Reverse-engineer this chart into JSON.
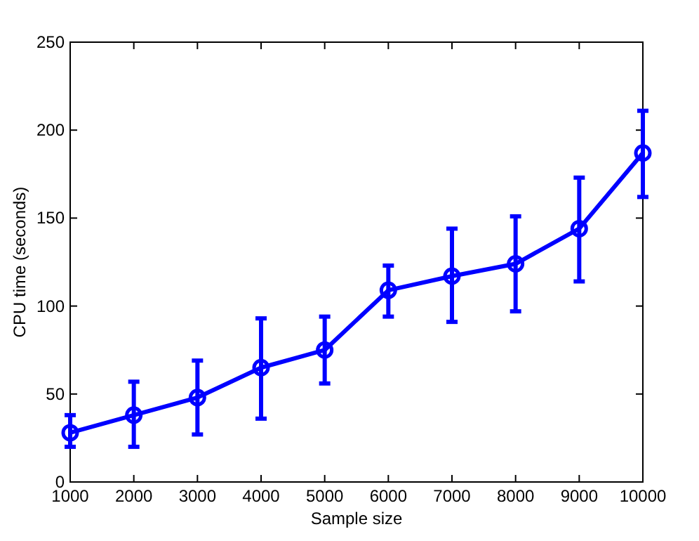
{
  "chart_data": {
    "type": "line",
    "xlabel": "Sample size",
    "ylabel": "CPU time (seconds)",
    "x": [
      1000,
      2000,
      3000,
      4000,
      5000,
      6000,
      7000,
      8000,
      9000,
      10000
    ],
    "series": [
      {
        "color": "#0000ff",
        "values": [
          28,
          38,
          48,
          65,
          75,
          109,
          117,
          124,
          144,
          187
        ],
        "errors": [
          [
            20,
            38
          ],
          [
            20,
            57
          ],
          [
            27,
            69
          ],
          [
            36,
            93
          ],
          [
            56,
            94
          ],
          [
            94,
            123
          ],
          [
            91,
            144
          ],
          [
            97,
            151
          ],
          [
            114,
            173
          ],
          [
            162,
            211
          ]
        ]
      }
    ],
    "xlim": [
      1000,
      10000
    ],
    "xticks": [
      1000,
      2000,
      3000,
      4000,
      5000,
      6000,
      7000,
      8000,
      9000,
      10000
    ],
    "ylim": [
      0,
      250
    ],
    "yticks": [
      0,
      50,
      100,
      150,
      200,
      250
    ],
    "marker": "circle",
    "line_style": "solid",
    "grid": false
  }
}
